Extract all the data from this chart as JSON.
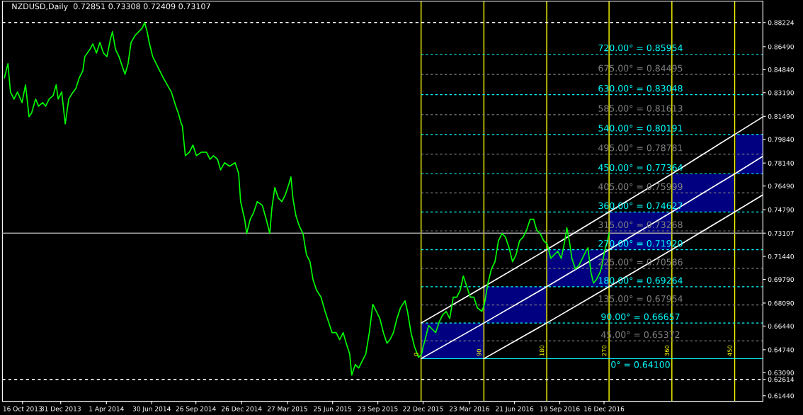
{
  "chart_data": {
    "type": "line",
    "title": "NZDUSD,Daily  0.72851 0.73308 0.72409 0.73107",
    "xlim": [
      "2013-09-06",
      "2017-10-28"
    ],
    "ylim": [
      0.6104,
      0.8975
    ],
    "xticks": [
      {
        "value": "2013-10-16",
        "label": "16 Oct 2013"
      },
      {
        "value": "2013-12-31",
        "label": "31 Dec 2013"
      },
      {
        "value": "2014-04-01",
        "label": "1 Apr 2014"
      },
      {
        "value": "2014-06-30",
        "label": "30 Jun 2014"
      },
      {
        "value": "2014-09-26",
        "label": "26 Sep 2014"
      },
      {
        "value": "2014-12-26",
        "label": "26 Dec 2014"
      },
      {
        "value": "2015-03-27",
        "label": "27 Mar 2015"
      },
      {
        "value": "2015-06-25",
        "label": "25 Jun 2015"
      },
      {
        "value": "2015-09-23",
        "label": "23 Sep 2015"
      },
      {
        "value": "2015-12-22",
        "label": "22 Dec 2015"
      },
      {
        "value": "2016-03-23",
        "label": "23 Mar 2016"
      },
      {
        "value": "2016-06-21",
        "label": "21 Jun 2016"
      },
      {
        "value": "2016-09-19",
        "label": "19 Sep 2016"
      },
      {
        "value": "2016-12-16",
        "label": "16 Dec 2016"
      }
    ],
    "yticks": [
      {
        "value": 0.88224,
        "label": "0.88224"
      },
      {
        "value": 0.8649,
        "label": "0.86490"
      },
      {
        "value": 0.8484,
        "label": "0.84840"
      },
      {
        "value": 0.8319,
        "label": "0.83190"
      },
      {
        "value": 0.8149,
        "label": "0.81490"
      },
      {
        "value": 0.7984,
        "label": "0.79840"
      },
      {
        "value": 0.7814,
        "label": "0.78140"
      },
      {
        "value": 0.7649,
        "label": "0.76490"
      },
      {
        "value": 0.7479,
        "label": "0.74790"
      },
      {
        "value": 0.73107,
        "label": "0.73107"
      },
      {
        "value": 0.7144,
        "label": "0.71440"
      },
      {
        "value": 0.6979,
        "label": "0.69790"
      },
      {
        "value": 0.6809,
        "label": "0.68090"
      },
      {
        "value": 0.6644,
        "label": "0.66440"
      },
      {
        "value": 0.6474,
        "label": "0.64740"
      },
      {
        "value": 0.6309,
        "label": "0.63090"
      },
      {
        "value": 0.62614,
        "label": "0.62614"
      },
      {
        "value": 0.6144,
        "label": "0.61440"
      }
    ],
    "series": [
      {
        "type": "bar",
        "color": "#000080",
        "x": [
          "2016-02-18",
          "2016-06-22",
          "2016-10-25",
          "2017-02-26",
          "2017-07-01",
          "2017-10-01"
        ],
        "base": [
          0.641,
          0.66657,
          0.69264,
          0.7192,
          0.74627,
          0.77364
        ],
        "values": [
          0.02557,
          0.02607,
          0.02656,
          0.02707,
          0.02737,
          0.02827
        ]
      },
      {
        "type": "line",
        "color": "#ffffff",
        "x": [
          "2015-12-18",
          "2016-04-21",
          "2016-08-24",
          "2016-12-26",
          "2017-04-30",
          "2017-09-02",
          "2017-10-28"
        ],
        "values": [
          0.66657,
          0.69264,
          0.7192,
          0.74627,
          0.77364,
          0.80191,
          0.8145
        ]
      },
      {
        "type": "line",
        "color": "#ffffff",
        "x": [
          "2015-12-18",
          "2016-04-21",
          "2016-08-24",
          "2016-12-26",
          "2017-04-30",
          "2017-09-02",
          "2017-10-28"
        ],
        "values": [
          0.641,
          0.66657,
          0.69264,
          0.7192,
          0.74627,
          0.77364,
          0.7862
        ]
      },
      {
        "type": "line",
        "color": "#ffffff",
        "x": [
          "2016-04-21",
          "2016-08-24",
          "2016-12-26",
          "2017-04-30",
          "2017-09-02",
          "2017-10-28"
        ],
        "values": [
          0.641,
          0.66657,
          0.69264,
          0.7192,
          0.74627,
          0.7585
        ]
      },
      {
        "color": "#00ff00",
        "x": [
          "2013-09-10",
          "2013-09-17",
          "2013-09-22",
          "2013-09-29",
          "2013-10-06",
          "2013-10-15",
          "2013-10-22",
          "2013-10-29",
          "2013-11-03",
          "2013-11-11",
          "2013-11-17",
          "2013-11-25",
          "2013-12-01",
          "2013-12-08",
          "2013-12-16",
          "2013-12-22",
          "2013-12-26",
          "2014-01-02",
          "2014-01-09",
          "2014-01-16",
          "2014-01-23",
          "2014-01-30",
          "2014-02-06",
          "2014-02-13",
          "2014-02-17",
          "2014-02-27",
          "2014-03-05",
          "2014-03-12",
          "2014-03-19",
          "2014-03-26",
          "2014-04-02",
          "2014-04-09",
          "2014-04-13",
          "2014-04-19",
          "2014-04-26",
          "2014-05-03",
          "2014-05-08",
          "2014-05-14",
          "2014-05-20",
          "2014-05-28",
          "2014-06-04",
          "2014-06-11",
          "2014-06-16",
          "2014-06-21",
          "2014-06-25",
          "2014-07-02",
          "2014-07-09",
          "2014-07-16",
          "2014-07-23",
          "2014-07-31",
          "2014-08-08",
          "2014-08-17",
          "2014-08-22",
          "2014-08-28",
          "2014-08-30",
          "2014-09-05",
          "2014-09-13",
          "2014-09-20",
          "2014-09-27",
          "2014-10-07",
          "2014-10-17",
          "2014-10-24",
          "2014-10-31",
          "2014-11-08",
          "2014-11-14",
          "2014-11-22",
          "2014-12-02",
          "2014-12-13",
          "2014-12-20",
          "2014-12-24",
          "2015-01-01",
          "2015-01-05",
          "2015-01-12",
          "2015-01-19",
          "2015-01-26",
          "2015-02-05",
          "2015-02-13",
          "2015-02-20",
          "2015-02-24",
          "2015-03-02",
          "2015-03-09",
          "2015-03-16",
          "2015-03-23",
          "2015-03-30",
          "2015-04-03",
          "2015-04-07",
          "2015-04-13",
          "2015-04-20",
          "2015-04-27",
          "2015-05-04",
          "2015-05-11",
          "2015-05-17",
          "2015-05-24",
          "2015-06-02",
          "2015-06-10",
          "2015-06-17",
          "2015-06-24",
          "2015-07-02",
          "2015-07-09",
          "2015-07-16",
          "2015-07-22",
          "2015-07-29",
          "2015-08-02",
          "2015-08-09",
          "2015-08-16",
          "2015-08-23",
          "2015-08-30",
          "2015-09-06",
          "2015-09-13",
          "2015-09-20",
          "2015-09-27",
          "2015-10-04",
          "2015-10-11",
          "2015-10-17",
          "2015-10-24",
          "2015-10-31",
          "2015-11-07",
          "2015-11-16",
          "2015-11-21",
          "2015-11-28",
          "2015-12-05",
          "2015-12-13",
          "2015-12-19",
          "2015-12-22",
          "2015-12-26",
          "2016-01-02",
          "2016-01-09",
          "2016-01-16",
          "2016-01-23",
          "2016-01-30",
          "2016-02-06",
          "2016-02-13",
          "2016-02-20",
          "2016-02-27",
          "2016-03-05",
          "2016-03-11",
          "2016-03-18",
          "2016-03-25",
          "2016-04-01",
          "2016-04-08",
          "2016-04-17",
          "2016-04-22",
          "2016-04-29",
          "2016-05-06",
          "2016-05-13",
          "2016-05-20",
          "2016-05-27",
          "2016-06-03",
          "2016-06-10",
          "2016-06-17",
          "2016-06-24",
          "2016-07-01",
          "2016-07-08",
          "2016-07-15",
          "2016-07-22",
          "2016-07-29",
          "2016-08-04",
          "2016-08-11",
          "2016-08-18",
          "2016-08-25",
          "2016-09-01",
          "2016-09-08",
          "2016-09-15",
          "2016-09-22",
          "2016-09-29",
          "2016-10-03",
          "2016-10-09",
          "2016-10-13",
          "2016-10-20",
          "2016-10-27",
          "2016-11-03",
          "2016-11-10",
          "2016-11-14",
          "2016-11-20",
          "2016-11-25",
          "2016-12-01",
          "2016-12-08",
          "2016-12-12",
          "2016-12-17",
          "2016-12-23",
          "2016-12-26"
        ],
        "values": [
          0.8426,
          0.8527,
          0.8324,
          0.8273,
          0.8324,
          0.8248,
          0.8375,
          0.8146,
          0.8172,
          0.8273,
          0.8222,
          0.8248,
          0.8222,
          0.8273,
          0.8299,
          0.8375,
          0.8273,
          0.8324,
          0.8095,
          0.8273,
          0.8314,
          0.8349,
          0.8426,
          0.8476,
          0.8578,
          0.8629,
          0.8669,
          0.8603,
          0.868,
          0.8603,
          0.8578,
          0.8705,
          0.8756,
          0.8629,
          0.8578,
          0.8502,
          0.8451,
          0.8527,
          0.868,
          0.873,
          0.8756,
          0.8781,
          0.8822,
          0.8756,
          0.868,
          0.8578,
          0.8527,
          0.8476,
          0.8426,
          0.8375,
          0.8324,
          0.8222,
          0.8172,
          0.8095,
          0.808,
          0.7867,
          0.7892,
          0.7943,
          0.7867,
          0.7892,
          0.7892,
          0.7841,
          0.7867,
          0.7841,
          0.7765,
          0.7816,
          0.7791,
          0.7816,
          0.774,
          0.7537,
          0.741,
          0.7308,
          0.741,
          0.746,
          0.7537,
          0.7511,
          0.741,
          0.7308,
          0.7486,
          0.7638,
          0.7562,
          0.7537,
          0.7587,
          0.7664,
          0.7714,
          0.7562,
          0.7435,
          0.7359,
          0.7308,
          0.7156,
          0.7105,
          0.6978,
          0.6902,
          0.6851,
          0.6749,
          0.6673,
          0.6597,
          0.6597,
          0.6546,
          0.6597,
          0.6521,
          0.6444,
          0.6292,
          0.6368,
          0.6343,
          0.6394,
          0.6444,
          0.6597,
          0.68,
          0.6749,
          0.6698,
          0.6597,
          0.6521,
          0.6546,
          0.6597,
          0.6698,
          0.6775,
          0.6825,
          0.6749,
          0.6597,
          0.6495,
          0.6419,
          0.6444,
          0.6495,
          0.6546,
          0.6648,
          0.6622,
          0.6597,
          0.6673,
          0.6724,
          0.6749,
          0.6698,
          0.6851,
          0.6851,
          0.6902,
          0.7003,
          0.6927,
          0.6851,
          0.6851,
          0.6775,
          0.6749,
          0.68,
          0.6952,
          0.7054,
          0.7105,
          0.7257,
          0.7308,
          0.7282,
          0.7206,
          0.7105,
          0.7156,
          0.7257,
          0.7282,
          0.7333,
          0.741,
          0.741,
          0.7333,
          0.7308,
          0.7257,
          0.7232,
          0.713,
          0.7156,
          0.7181,
          0.713,
          0.7257,
          0.7349,
          0.7232,
          0.713,
          0.7054,
          0.7079,
          0.713,
          0.7181,
          0.7206,
          0.7029,
          0.6952,
          0.6978,
          0.7029,
          0.7079,
          0.7181,
          0.7257,
          0.7311
        ]
      }
    ],
    "annotations": [
      {
        "text": "0",
        "x": "2015-12-18",
        "y": 0.641
      },
      {
        "text": "90",
        "x": "2016-04-21",
        "y": 0.641
      },
      {
        "text": "180",
        "x": "2016-08-24",
        "y": 0.641
      },
      {
        "text": "270",
        "x": "2016-12-26",
        "y": 0.641
      },
      {
        "text": "360",
        "x": "2017-04-30",
        "y": 0.641
      },
      {
        "text": "450",
        "x": "2017-09-02",
        "y": 0.641
      }
    ],
    "ref_lines": [
      {
        "axis": "y",
        "value": 0.88224,
        "color": "#ffffff",
        "line_style": "dashed"
      },
      {
        "axis": "y",
        "value": 0.62614,
        "color": "#ffffff",
        "line_style": "dashed"
      },
      {
        "axis": "y",
        "value": 0.73107,
        "color": "#a0a0a4",
        "line_style": "solid"
      },
      {
        "axis": "x",
        "value": "2015-12-18",
        "color": "#ffff00",
        "line_style": "solid"
      },
      {
        "axis": "x",
        "value": "2016-04-21",
        "color": "#ffff00",
        "line_style": "solid"
      },
      {
        "axis": "x",
        "value": "2016-08-24",
        "color": "#ffff00",
        "line_style": "solid"
      },
      {
        "axis": "x",
        "value": "2016-12-26",
        "color": "#ffff00",
        "line_style": "solid"
      },
      {
        "axis": "x",
        "value": "2017-04-30",
        "color": "#ffff00",
        "line_style": "solid"
      },
      {
        "axis": "x",
        "value": "2017-09-02",
        "color": "#ffff00",
        "line_style": "solid"
      },
      {
        "axis": "y",
        "value": 0.641,
        "label": "0° = 0.64100",
        "color": "#00ffff",
        "line_style": "solid"
      },
      {
        "axis": "y",
        "value": 0.65372,
        "label": "45.00° = 0.65372",
        "color": "#808080",
        "line_style": "dashed"
      },
      {
        "axis": "y",
        "value": 0.66657,
        "label": "90.00° = 0.66657",
        "color": "#00ffff",
        "line_style": "dashed"
      },
      {
        "axis": "y",
        "value": 0.67954,
        "label": "135.00° = 0.67954",
        "color": "#808080",
        "line_style": "dashed"
      },
      {
        "axis": "y",
        "value": 0.69264,
        "label": "180.00° = 0.69264",
        "color": "#00ffff",
        "line_style": "dashed"
      },
      {
        "axis": "y",
        "value": 0.70586,
        "label": "225.00° = 0.70586",
        "color": "#808080",
        "line_style": "dashed"
      },
      {
        "axis": "y",
        "value": 0.7192,
        "label": "270.00° = 0.71920",
        "color": "#00ffff",
        "line_style": "dashed"
      },
      {
        "axis": "y",
        "value": 0.73268,
        "label": "315.00° = 0.73268",
        "color": "#808080",
        "line_style": "dashed"
      },
      {
        "axis": "y",
        "value": 0.74627,
        "label": "360.00° = 0.74627",
        "color": "#00ffff",
        "line_style": "dashed"
      },
      {
        "axis": "y",
        "value": 0.75999,
        "label": "405.00° = 0.75999",
        "color": "#808080",
        "line_style": "dashed"
      },
      {
        "axis": "y",
        "value": 0.77364,
        "label": "450.00° = 0.77364",
        "color": "#00ffff",
        "line_style": "dashed"
      },
      {
        "axis": "y",
        "value": 0.78781,
        "label": "495.00° = 0.78781",
        "color": "#808080",
        "line_style": "dashed"
      },
      {
        "axis": "y",
        "value": 0.80191,
        "label": "540.00° = 0.80191",
        "color": "#00ffff",
        "line_style": "dashed"
      },
      {
        "axis": "y",
        "value": 0.81613,
        "label": "585.00° = 0.81613",
        "color": "#808080",
        "line_style": "dashed"
      },
      {
        "axis": "y",
        "value": 0.83048,
        "label": "630.00° = 0.83048",
        "color": "#00ffff",
        "line_style": "dashed"
      },
      {
        "axis": "y",
        "value": 0.84495,
        "label": "675.00° = 0.84495",
        "color": "#808080",
        "line_style": "dashed"
      },
      {
        "axis": "y",
        "value": 0.85954,
        "label": "720.00° = 0.85954",
        "color": "#00ffff",
        "line_style": "dashed"
      }
    ]
  }
}
